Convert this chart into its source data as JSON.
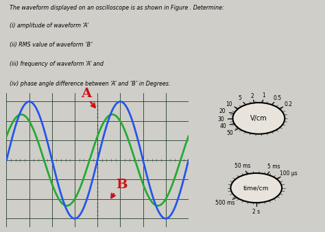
{
  "title_text": "The waveform displayed on an oscilloscope is as shown in Figure . Determine:",
  "questions": [
    "(i) amplitude of waveform ‘A’",
    "(ii) RMS value of waveform ‘B’",
    "(iii) frequency of waveform ‘A’ and",
    "(iv) phase angle difference between ‘A’ and ‘B’ in Degrees."
  ],
  "bg_color": "#d0cec8",
  "osc_bg": "#080c10",
  "osc_grid_color": "#1e3a28",
  "wave_A_color": "#2255ee",
  "wave_B_color": "#22aa33",
  "wave_A_amplitude": 1.0,
  "wave_B_amplitude": 0.78,
  "wave_A_phase": 0.0,
  "wave_B_phase": 0.55,
  "label_A": "A",
  "label_B": "B",
  "label_color": "#cc1111",
  "vcm_label": "V/cm",
  "time_label": "time/cm",
  "dial_bg": "#e8e4dc"
}
